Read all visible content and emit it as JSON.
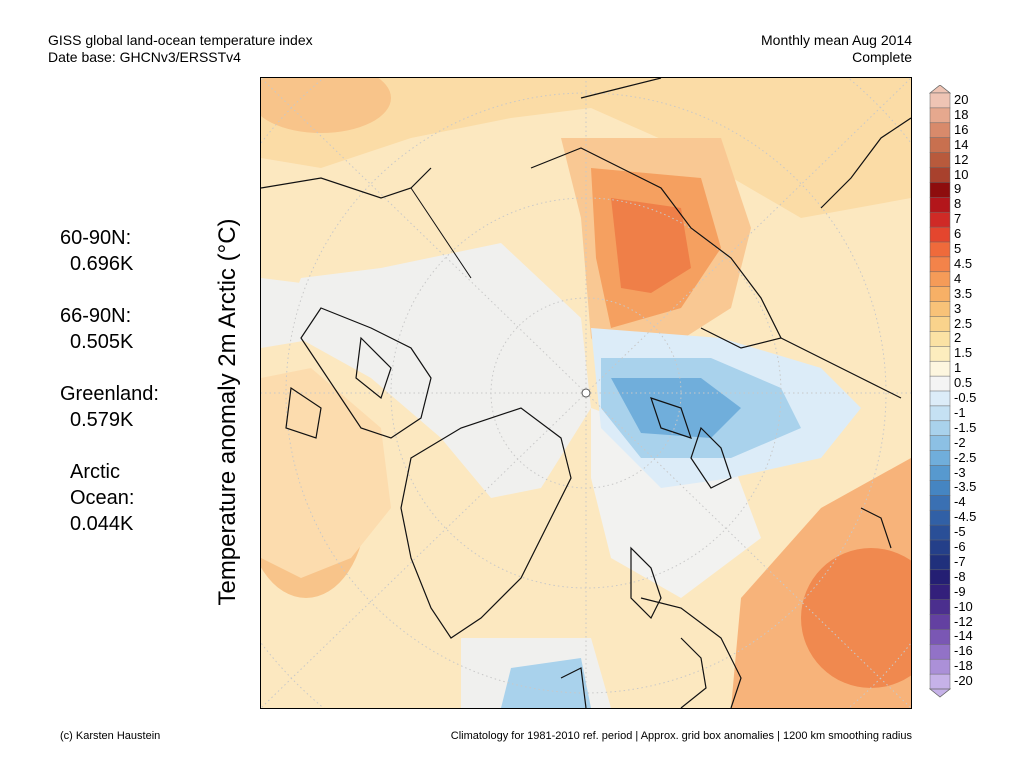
{
  "header": {
    "title_line1": "GISS global land-ocean temperature index",
    "title_line2": "Date base: GHCNv3/ERSSTv4",
    "period_line1": "Monthly mean Aug 2014",
    "period_line2": "Complete"
  },
  "axis_label": "Temperature anomaly 2m Arctic (°C)",
  "stats": [
    {
      "label": "60-90N:",
      "value": "0.696K"
    },
    {
      "label": "66-90N:",
      "value": "0.505K"
    },
    {
      "label": "Greenland:",
      "value": "0.579K"
    },
    {
      "label": "Arctic",
      "label2": "Ocean:",
      "value": "0.044K"
    }
  ],
  "colorbar": {
    "labels": [
      "20",
      "18",
      "16",
      "14",
      "12",
      "10",
      "9",
      "8",
      "7",
      "6",
      "5",
      "4.5",
      "4",
      "3.5",
      "3",
      "2.5",
      "2",
      "1.5",
      "1",
      "0.5",
      "-0.5",
      "-1",
      "-1.5",
      "-2",
      "-2.5",
      "-3",
      "-3.5",
      "-4",
      "-4.5",
      "-5",
      "-6",
      "-7",
      "-8",
      "-9",
      "-10",
      "-12",
      "-14",
      "-16",
      "-18",
      "-20"
    ],
    "colors": [
      "#efc4b4",
      "#e6a88e",
      "#d88a6b",
      "#c8704f",
      "#b85a3c",
      "#a8412d",
      "#8e0d0d",
      "#b3161b",
      "#cf2a26",
      "#e4462e",
      "#ef6a3b",
      "#f3834a",
      "#f59b58",
      "#f7b066",
      "#f8c278",
      "#f9d38c",
      "#fbe2a4",
      "#fcedbe",
      "#fdf6df",
      "#f4f4f4",
      "#dcecf8",
      "#c5e1f3",
      "#a9d2ec",
      "#8cc0e4",
      "#70aedb",
      "#5799cf",
      "#4585c2",
      "#3a70b3",
      "#3160a6",
      "#2a4f97",
      "#243f89",
      "#20307c",
      "#241f73",
      "#33207b",
      "#4b2f8e",
      "#6340a1",
      "#7a57b4",
      "#9272c7",
      "#ab90d8",
      "#c6b2e8"
    ]
  },
  "footer": {
    "left": "(c) Karsten Haustein",
    "right": "Climatology for 1981-2010 ref. period | Approx. grid box anomalies | 1200 km smoothing radius"
  }
}
